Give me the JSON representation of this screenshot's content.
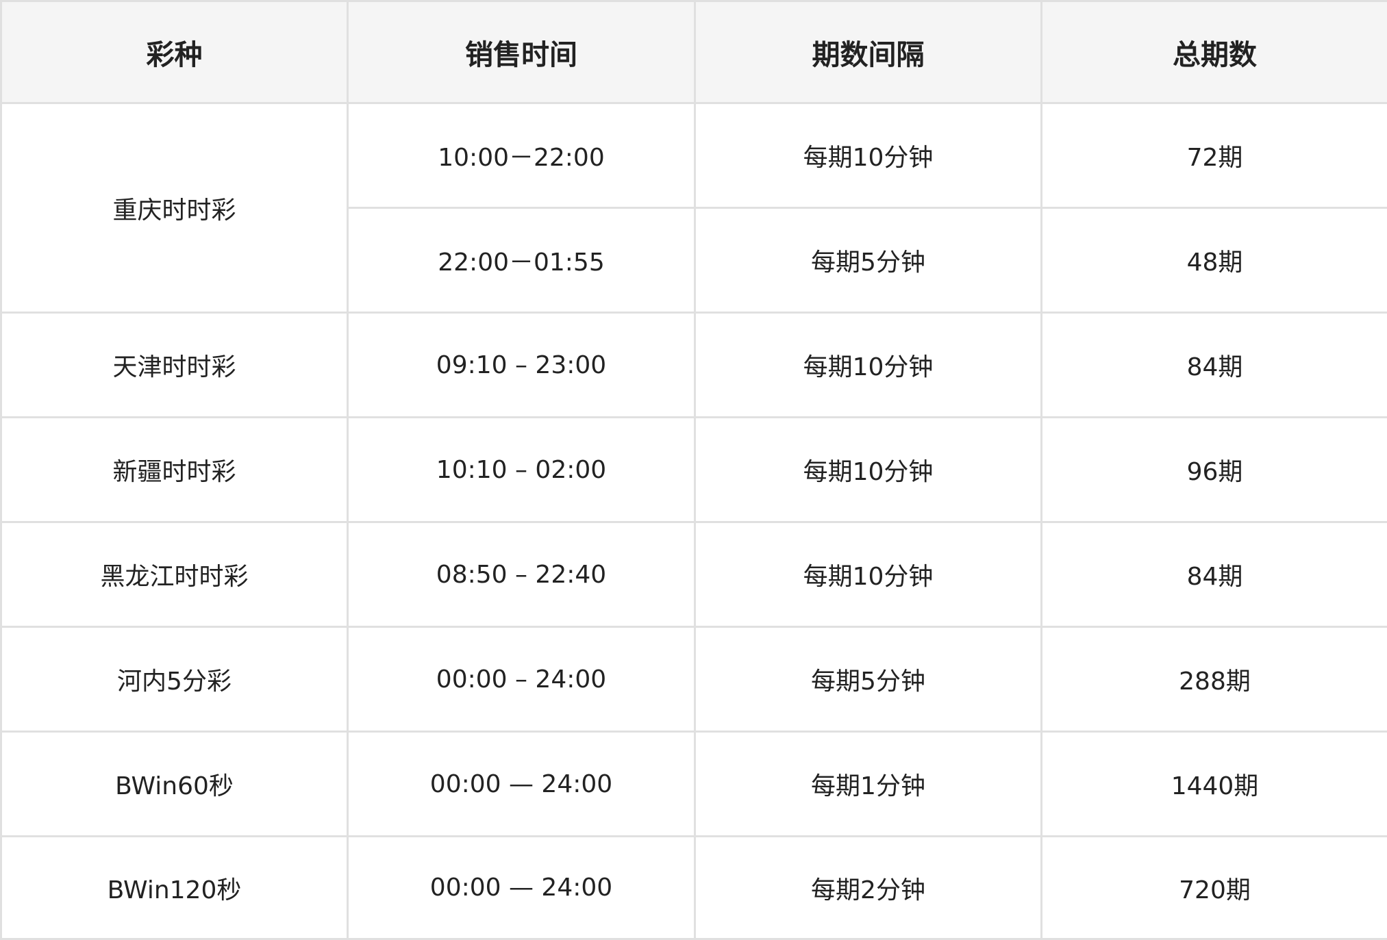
{
  "table": {
    "headers": [
      "彩种",
      "销售时间",
      "期数间隔",
      "总期数"
    ],
    "groups": [
      {
        "name": "重庆时时彩",
        "rows": [
          {
            "time": "10:00－22:00",
            "interval": "每期10分钟",
            "total": "72期"
          },
          {
            "time": "22:00－01:55",
            "interval": "每期5分钟",
            "total": "48期"
          }
        ]
      },
      {
        "name": "天津时时彩",
        "rows": [
          {
            "time": "09:10 – 23:00",
            "interval": "每期10分钟",
            "total": "84期"
          }
        ]
      },
      {
        "name": "新疆时时彩",
        "rows": [
          {
            "time": "10:10 – 02:00",
            "interval": "每期10分钟",
            "total": "96期"
          }
        ]
      },
      {
        "name": "黑龙江时时彩",
        "rows": [
          {
            "time": "08:50 – 22:40",
            "interval": "每期10分钟",
            "total": "84期"
          }
        ]
      },
      {
        "name": "河内5分彩",
        "rows": [
          {
            "time": "00:00 – 24:00",
            "interval": "每期5分钟",
            "total": "288期"
          }
        ]
      },
      {
        "name": "BWin60秒",
        "rows": [
          {
            "time": "00:00 — 24:00",
            "interval": "每期1分钟",
            "total": "1440期"
          }
        ]
      },
      {
        "name": "BWin120秒",
        "rows": [
          {
            "time": "00:00 — 24:00",
            "interval": "每期2分钟",
            "total": "720期"
          }
        ]
      }
    ]
  }
}
